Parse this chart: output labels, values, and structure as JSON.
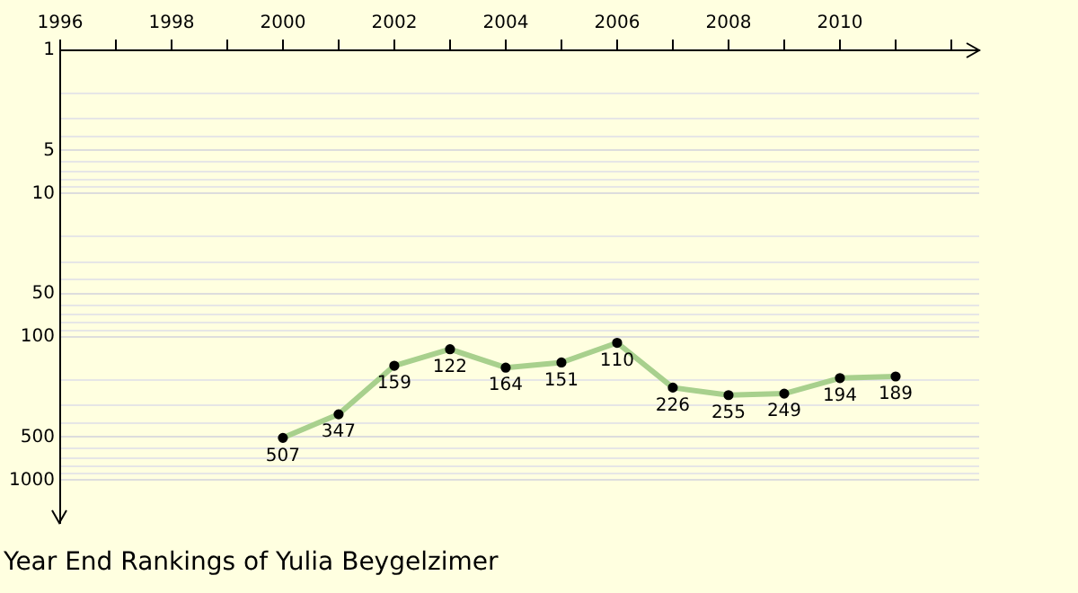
{
  "chart_data": {
    "type": "line",
    "title": "Year End Rankings of Yulia Beygelzimer",
    "x": [
      2000,
      2001,
      2002,
      2003,
      2004,
      2005,
      2006,
      2007,
      2008,
      2009,
      2010,
      2011
    ],
    "series": [
      {
        "color": "#a8d08d",
        "values": [
          507,
          347,
          159,
          122,
          164,
          151,
          110,
          226,
          255,
          249,
          194,
          189
        ]
      }
    ],
    "data_labels": true,
    "marker": "circle",
    "line_style": "solid",
    "log": "y",
    "grid": "y",
    "legend": false,
    "xlim": [
      1996,
      2012.5
    ],
    "xticks": [
      1996,
      {
        "value": 1997,
        "label": null
      },
      1998,
      {
        "value": 1999,
        "label": null
      },
      2000,
      {
        "value": 2001,
        "label": null
      },
      2002,
      {
        "value": 2003,
        "label": null
      },
      2004,
      {
        "value": 2005,
        "label": null
      },
      2006,
      {
        "value": 2007,
        "label": null
      },
      2008,
      {
        "value": 2009,
        "label": null
      },
      2010,
      {
        "value": 2011,
        "label": null
      },
      {
        "value": 2012,
        "label": null
      }
    ],
    "ylim": [
      2000,
      1
    ],
    "yticks": [
      1,
      {
        "value": 2,
        "label": null
      },
      {
        "value": 3,
        "label": null
      },
      {
        "value": 4,
        "label": null
      },
      5,
      {
        "value": 6,
        "label": null
      },
      {
        "value": 7,
        "label": null
      },
      {
        "value": 8,
        "label": null
      },
      {
        "value": 9,
        "label": null
      },
      10,
      {
        "value": 20,
        "label": null
      },
      {
        "value": 30,
        "label": null
      },
      {
        "value": 40,
        "label": null
      },
      50,
      {
        "value": 60,
        "label": null
      },
      {
        "value": 70,
        "label": null
      },
      {
        "value": 80,
        "label": null
      },
      {
        "value": 90,
        "label": null
      },
      100,
      {
        "value": 200,
        "label": null
      },
      {
        "value": 300,
        "label": null
      },
      {
        "value": 400,
        "label": null
      },
      500,
      {
        "value": 600,
        "label": null
      },
      {
        "value": 700,
        "label": null
      },
      {
        "value": 800,
        "label": null
      },
      {
        "value": 900,
        "label": null
      },
      1000
    ]
  }
}
